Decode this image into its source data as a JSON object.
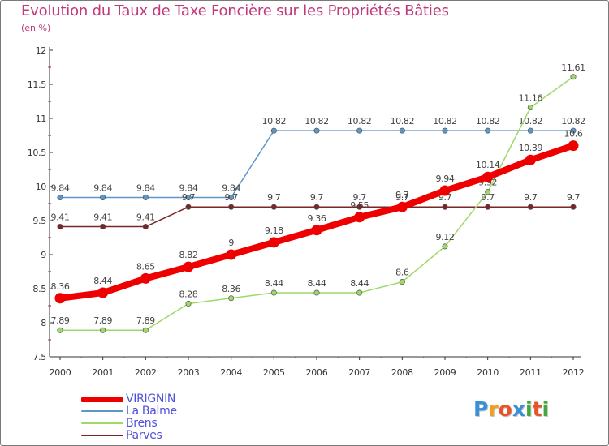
{
  "title": "Evolution du Taux de Taxe Foncière sur les Propriétés Bâties",
  "subtitle": "(en %)",
  "brand": "Proxiti",
  "chart_data": {
    "type": "line",
    "title": "Evolution du Taux de Taxe Foncière sur les Propriétés Bâties",
    "ylabel": "(en %)",
    "xlabel": "",
    "categories": [
      "2000",
      "2001",
      "2002",
      "2003",
      "2004",
      "2005",
      "2006",
      "2007",
      "2008",
      "2009",
      "2010",
      "2011",
      "2012"
    ],
    "ylim": [
      7.5,
      12
    ],
    "yticks": [
      "7.5",
      "8",
      "8.5",
      "9",
      "9.5",
      "10",
      "10.5",
      "11",
      "11.5",
      "12"
    ],
    "legend_position": "bottom-left",
    "series": [
      {
        "name": "La Balme",
        "color": "#5a98cc",
        "values": [
          9.84,
          9.84,
          9.84,
          9.84,
          9.84,
          10.82,
          10.82,
          10.82,
          10.82,
          10.82,
          10.82,
          10.82,
          10.82
        ],
        "labels": [
          "9.84",
          "9.84",
          "9.84",
          "9.84",
          "9.84",
          "10.82",
          "10.82",
          "10.82",
          "10.82",
          "10.82",
          "10.82",
          "10.82",
          "10.82"
        ]
      },
      {
        "name": "Parves",
        "color": "#7a2626",
        "values": [
          9.41,
          9.41,
          9.41,
          9.7,
          9.7,
          9.7,
          9.7,
          9.7,
          9.7,
          9.7,
          9.7,
          9.7,
          9.7
        ],
        "labels": [
          "9.41",
          "9.41",
          "9.41",
          "9.7",
          "9.7",
          "9.7",
          "9.7",
          "9.7",
          "9.7",
          "9.7",
          "9.7",
          "9.7",
          "9.7"
        ]
      },
      {
        "name": "Brens",
        "color": "#9ed86a",
        "values": [
          7.89,
          7.89,
          7.89,
          8.28,
          8.36,
          8.44,
          8.44,
          8.44,
          8.6,
          9.12,
          9.92,
          11.16,
          11.61
        ],
        "labels": [
          "7.89",
          "7.89",
          "7.89",
          "8.28",
          "8.36",
          "8.44",
          "8.44",
          "8.44",
          "8.6",
          "9.12",
          "9.92",
          "11.16",
          "11.61"
        ]
      },
      {
        "name": "VIRIGNIN",
        "color": "#ee0000",
        "values": [
          8.36,
          8.44,
          8.65,
          8.82,
          9,
          9.18,
          9.36,
          9.55,
          9.7,
          9.94,
          10.14,
          10.39,
          10.6
        ],
        "labels": [
          "8.36",
          "8.44",
          "8.65",
          "8.82",
          "9",
          "9.18",
          "9.36",
          "9.55",
          "9.7",
          "9.94",
          "10.14",
          "10.39",
          "10.6"
        ]
      }
    ],
    "legend": [
      "VIRIGNIN",
      "La Balme",
      "Brens",
      "Parves"
    ]
  }
}
